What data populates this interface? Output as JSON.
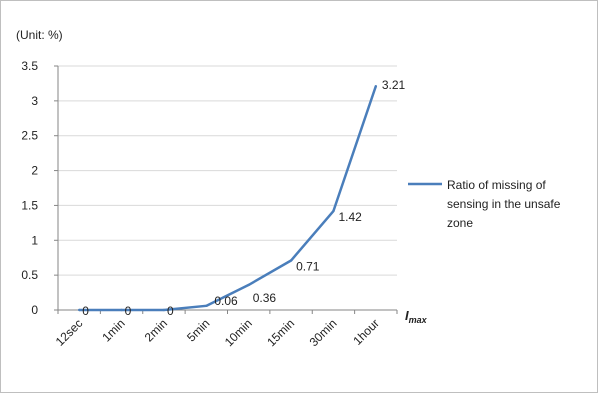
{
  "chart_data": {
    "type": "line",
    "unit_label": "(Unit: %)",
    "xlabel": "I",
    "xlabel_subscript": "max",
    "categories": [
      "12sec",
      "1min",
      "2min",
      "5min",
      "10min",
      "15min",
      "30min",
      "1hour"
    ],
    "series": [
      {
        "name": "Ratio of missing of sensing in the unsafe zone",
        "legend_lines": [
          "Ratio of missing of",
          "sensing in the unsafe",
          "zone"
        ],
        "values": [
          0,
          0,
          0,
          0.06,
          0.36,
          0.71,
          1.42,
          3.21
        ],
        "labels": [
          "0",
          "0",
          "0",
          "0.06",
          "0.36",
          "0.71",
          "1.42",
          "3.21"
        ],
        "color": "#4a7ebb"
      }
    ],
    "ylim": [
      0,
      3.5
    ],
    "yticks": [
      "0",
      "0.5",
      "1",
      "1.5",
      "2",
      "2.5",
      "3",
      "3.5"
    ],
    "grid": true,
    "legend_position": "right"
  }
}
